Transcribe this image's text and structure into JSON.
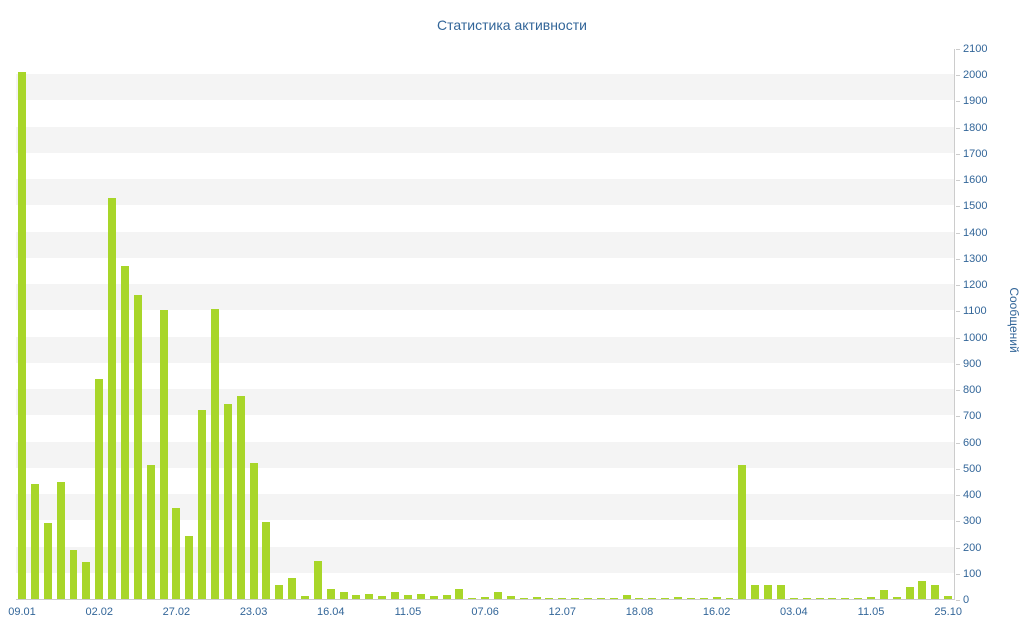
{
  "title": "Статистика активности",
  "colors": {
    "bar": "#a8d629",
    "title_text": "#336699",
    "axis_text": "#336699",
    "axis_line": "#cccccc",
    "stripe": "#f4f4f4"
  },
  "chart_data": {
    "type": "bar",
    "title": "Статистика активности",
    "xlabel": "",
    "ylabel": "Сообщений",
    "ylim": [
      0,
      2100
    ],
    "y_tick_step": 100,
    "y_ticks": [
      0,
      100,
      200,
      300,
      400,
      500,
      600,
      700,
      800,
      900,
      1000,
      1100,
      1200,
      1300,
      1400,
      1500,
      1600,
      1700,
      1800,
      1900,
      2000,
      2100
    ],
    "x_tick_labels": [
      "09.01",
      "02.02",
      "27.02",
      "23.03",
      "16.04",
      "11.05",
      "07.06",
      "12.07",
      "18.08",
      "16.02",
      "03.04",
      "11.05",
      "25.10"
    ],
    "x_tick_every": 6,
    "grid": "horizontal-bands",
    "legend_position": "none",
    "values": [
      2010,
      440,
      290,
      445,
      185,
      140,
      840,
      1530,
      1270,
      1160,
      510,
      1100,
      345,
      240,
      720,
      1105,
      745,
      775,
      520,
      295,
      55,
      80,
      10,
      145,
      40,
      25,
      15,
      20,
      10,
      25,
      15,
      20,
      10,
      15,
      40,
      5,
      8,
      25,
      10,
      5,
      8,
      5,
      5,
      3,
      5,
      3,
      5,
      15,
      5,
      3,
      3,
      8,
      3,
      3,
      8,
      3,
      510,
      55,
      55,
      55,
      5,
      5,
      3,
      5,
      3,
      3,
      8,
      35,
      8,
      45,
      70,
      55,
      10
    ]
  }
}
